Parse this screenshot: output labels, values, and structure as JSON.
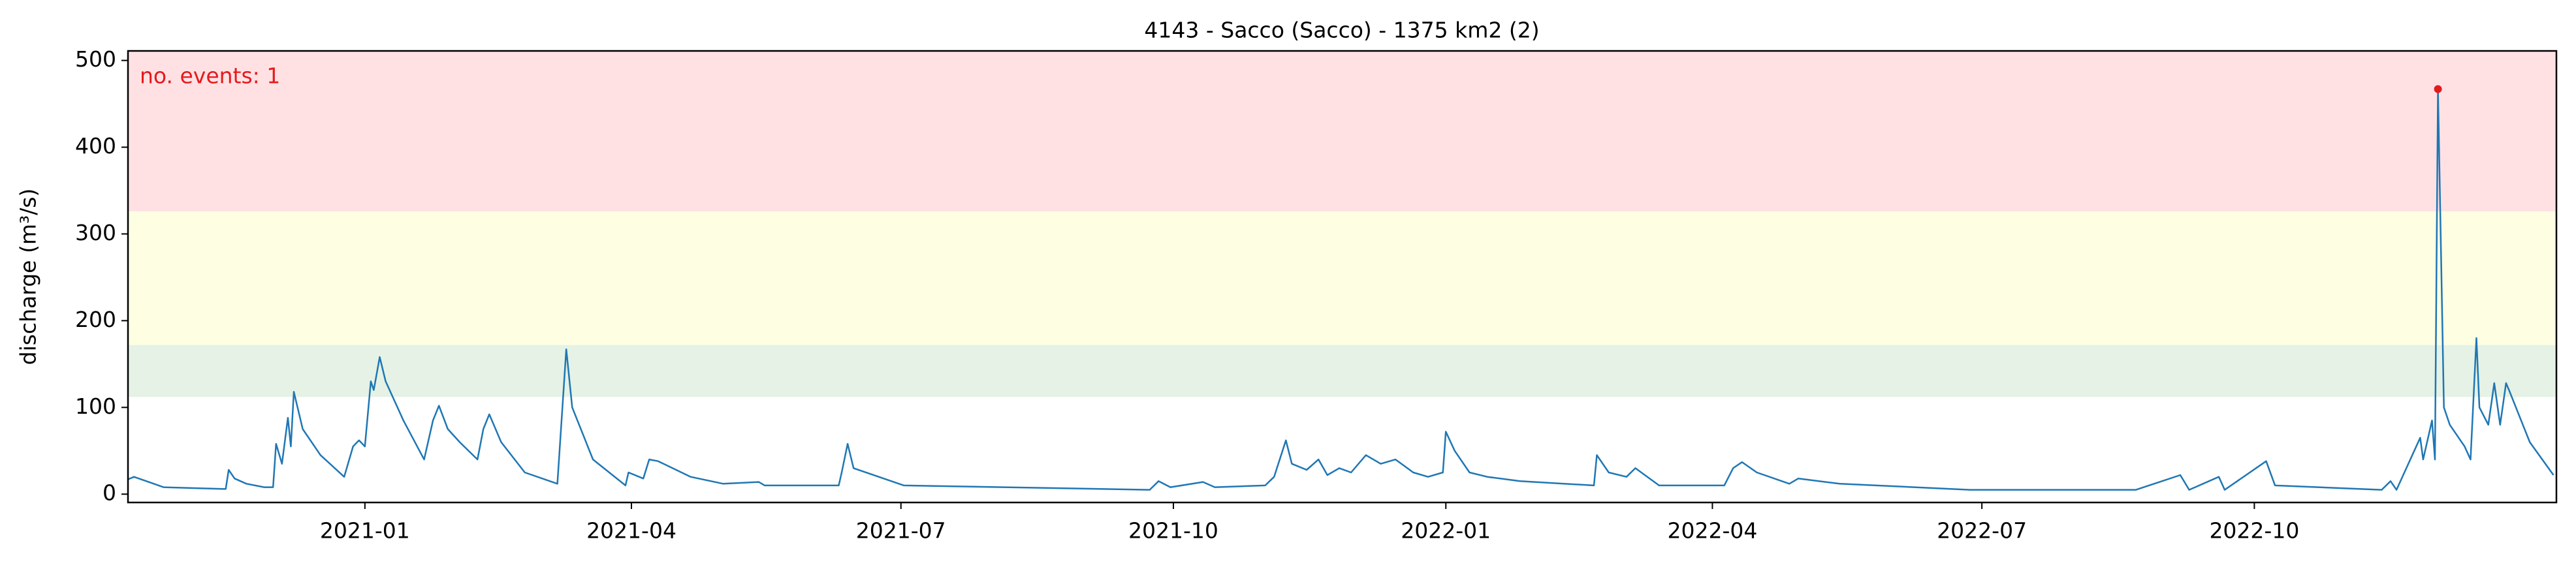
{
  "chart_data": {
    "type": "line",
    "title": "4143 - Sacco (Sacco) - 1375 km2 (2)",
    "y_label": "discharge (m³/s)",
    "annotation": "no. events: 1",
    "xlim": [
      "2020-10-13",
      "2023-01-11"
    ],
    "xticks": [
      {
        "value": "2021-01-01",
        "label": "2021-01"
      },
      {
        "value": "2021-04-01",
        "label": "2021-04"
      },
      {
        "value": "2021-07-01",
        "label": "2021-07"
      },
      {
        "value": "2021-10-01",
        "label": "2021-10"
      },
      {
        "value": "2022-01-01",
        "label": "2022-01"
      },
      {
        "value": "2022-04-01",
        "label": "2022-04"
      },
      {
        "value": "2022-07-01",
        "label": "2022-07"
      },
      {
        "value": "2022-10-01",
        "label": "2022-10"
      }
    ],
    "ylim": [
      -9.6,
      511
    ],
    "yticks": [
      0,
      100,
      200,
      300,
      400,
      500
    ],
    "bands": [
      {
        "from": 112,
        "to": 172,
        "color": "#e5f2e5"
      },
      {
        "from": 172,
        "to": 326,
        "color": "#fefee3"
      },
      {
        "from": 326,
        "to": 511,
        "color": "#ffe1e4"
      }
    ],
    "x": [
      "2020-10-13",
      "2020-10-15",
      "2020-10-20",
      "2020-10-25",
      "2020-11-14",
      "2020-11-15",
      "2020-11-16",
      "2020-11-18",
      "2020-11-22",
      "2020-11-28",
      "2020-12-01",
      "2020-12-02",
      "2020-12-04",
      "2020-12-06",
      "2020-12-07",
      "2020-12-08",
      "2020-12-11",
      "2020-12-17",
      "2020-12-25",
      "2020-12-28",
      "2020-12-30",
      "2021-01-01",
      "2021-01-03",
      "2021-01-04",
      "2021-01-06",
      "2021-01-08",
      "2021-01-14",
      "2021-01-21",
      "2021-01-24",
      "2021-01-26",
      "2021-01-29",
      "2021-02-02",
      "2021-02-08",
      "2021-02-10",
      "2021-02-12",
      "2021-02-16",
      "2021-02-24",
      "2021-03-07",
      "2021-03-10",
      "2021-03-12",
      "2021-03-19",
      "2021-03-30",
      "2021-03-31",
      "2021-04-05",
      "2021-04-07",
      "2021-04-10",
      "2021-04-21",
      "2021-05-02",
      "2021-05-14",
      "2021-05-16",
      "2021-06-10",
      "2021-06-11",
      "2021-06-13",
      "2021-06-15",
      "2021-07-02",
      "2021-09-23",
      "2021-09-26",
      "2021-09-30",
      "2021-10-11",
      "2021-10-15",
      "2021-11-01",
      "2021-11-04",
      "2021-11-08",
      "2021-11-10",
      "2021-11-15",
      "2021-11-19",
      "2021-11-22",
      "2021-11-26",
      "2021-11-30",
      "2021-12-05",
      "2021-12-10",
      "2021-12-15",
      "2021-12-21",
      "2021-12-26",
      "2021-12-31",
      "2022-01-01",
      "2022-01-04",
      "2022-01-09",
      "2022-01-15",
      "2022-01-26",
      "2022-02-20",
      "2022-02-21",
      "2022-02-25",
      "2022-03-03",
      "2022-03-06",
      "2022-03-14",
      "2022-04-05",
      "2022-04-08",
      "2022-04-11",
      "2022-04-16",
      "2022-04-27",
      "2022-04-30",
      "2022-05-14",
      "2022-06-27",
      "2022-08-22",
      "2022-09-06",
      "2022-09-09",
      "2022-09-19",
      "2022-09-21",
      "2022-10-05",
      "2022-10-08",
      "2022-11-13",
      "2022-11-16",
      "2022-11-18",
      "2022-11-26",
      "2022-11-27",
      "2022-11-30",
      "2022-12-01",
      "2022-12-02",
      "2022-12-04",
      "2022-12-06",
      "2022-12-11",
      "2022-12-13",
      "2022-12-15",
      "2022-12-16",
      "2022-12-19",
      "2022-12-21",
      "2022-12-23",
      "2022-12-25",
      "2022-12-26",
      "2023-01-02",
      "2023-01-10"
    ],
    "series": [
      {
        "color": "#1f77b4",
        "values": [
          17,
          20,
          14,
          8,
          6,
          6,
          28,
          18,
          12,
          8,
          8,
          58,
          35,
          88,
          55,
          118,
          75,
          45,
          20,
          55,
          62,
          55,
          130,
          120,
          158,
          130,
          85,
          40,
          85,
          102,
          75,
          60,
          40,
          75,
          92,
          60,
          25,
          12,
          167,
          100,
          40,
          10,
          25,
          18,
          40,
          38,
          20,
          12,
          14,
          10,
          10,
          25,
          58,
          30,
          10,
          5,
          15,
          8,
          14,
          8,
          10,
          20,
          62,
          35,
          28,
          40,
          22,
          30,
          25,
          45,
          35,
          40,
          25,
          20,
          25,
          72,
          50,
          25,
          20,
          15,
          10,
          45,
          25,
          20,
          30,
          10,
          10,
          30,
          37,
          25,
          12,
          18,
          12,
          5,
          5,
          22,
          5,
          20,
          5,
          38,
          10,
          5,
          15,
          5,
          65,
          40,
          85,
          40,
          467,
          100,
          80,
          55,
          40,
          180,
          100,
          80,
          128,
          80,
          128,
          120,
          60,
          22
        ]
      }
    ],
    "events": {
      "color": "#e41a1c",
      "x": [
        "2022-12-02"
      ],
      "values": [
        467
      ]
    }
  }
}
